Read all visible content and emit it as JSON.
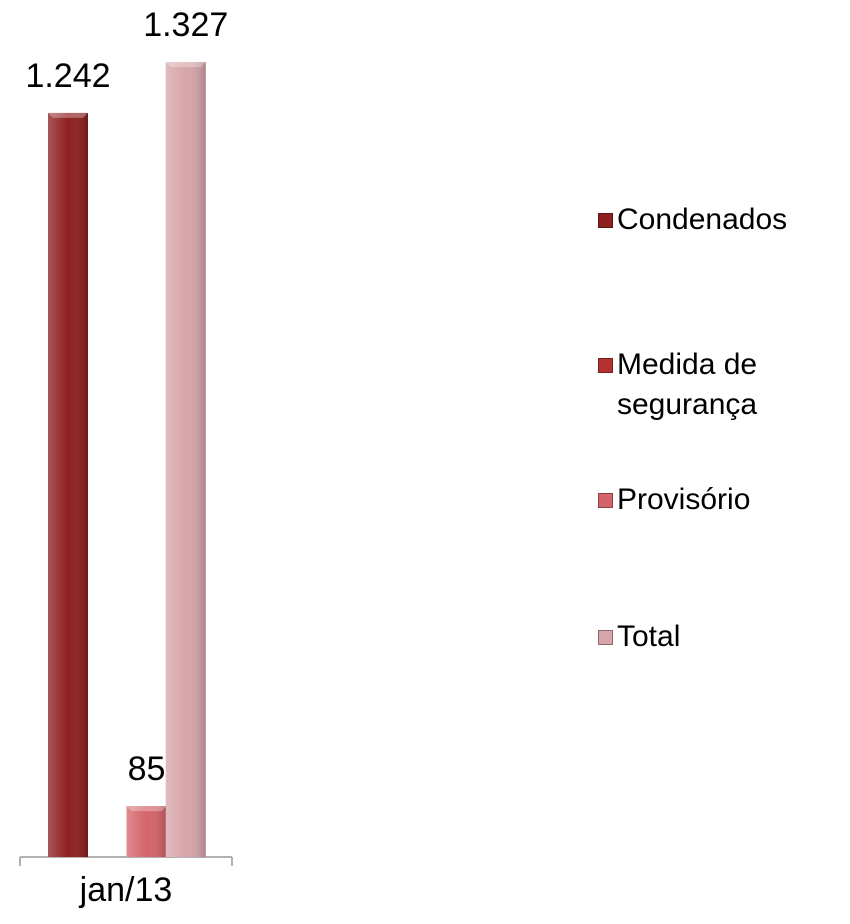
{
  "chart_data": {
    "type": "bar",
    "categories": [
      "jan/13"
    ],
    "series": [
      {
        "name": "Condenados",
        "color": "#8e1f1f",
        "values": [
          1242
        ],
        "value_labels": [
          "1.242"
        ]
      },
      {
        "name": "Medida de segurança",
        "color": "#b5312f",
        "values": [
          null
        ]
      },
      {
        "name": "Provisório",
        "color": "#d4646a",
        "values": [
          85
        ]
      },
      {
        "name": "Total",
        "color": "#d6a4a9",
        "values": [
          1327
        ],
        "value_labels": [
          "1.327"
        ]
      }
    ],
    "legend": "right"
  }
}
